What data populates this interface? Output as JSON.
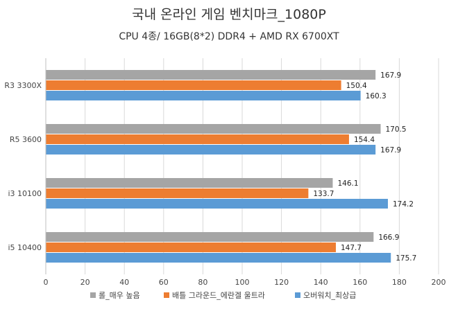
{
  "chart_data": {
    "type": "bar",
    "orientation": "horizontal",
    "title": "국내 온라인 게임 벤치마크_1080P",
    "subtitle": "CPU 4종/ 16GB(8*2) DDR4 + AMD RX 6700XT",
    "categories": [
      "R3 3300X",
      "R5 3600",
      "i3 10100",
      "i5 10400"
    ],
    "series": [
      {
        "name": "롤_매우 높음",
        "color": "#a5a5a5",
        "values": [
          167.9,
          170.5,
          146.1,
          166.9
        ]
      },
      {
        "name": "배틀 그라운드_에란겔 울트라",
        "color": "#ed7d31",
        "values": [
          150.4,
          154.4,
          133.7,
          147.7
        ]
      },
      {
        "name": "오버워치_최상급",
        "color": "#5b9bd5",
        "values": [
          160.3,
          167.9,
          174.2,
          175.7
        ]
      }
    ],
    "xlim": [
      0,
      200
    ],
    "xticks": [
      0,
      20,
      40,
      60,
      80,
      100,
      120,
      140,
      160,
      180,
      200
    ],
    "grid": true,
    "legend_position": "bottom"
  }
}
